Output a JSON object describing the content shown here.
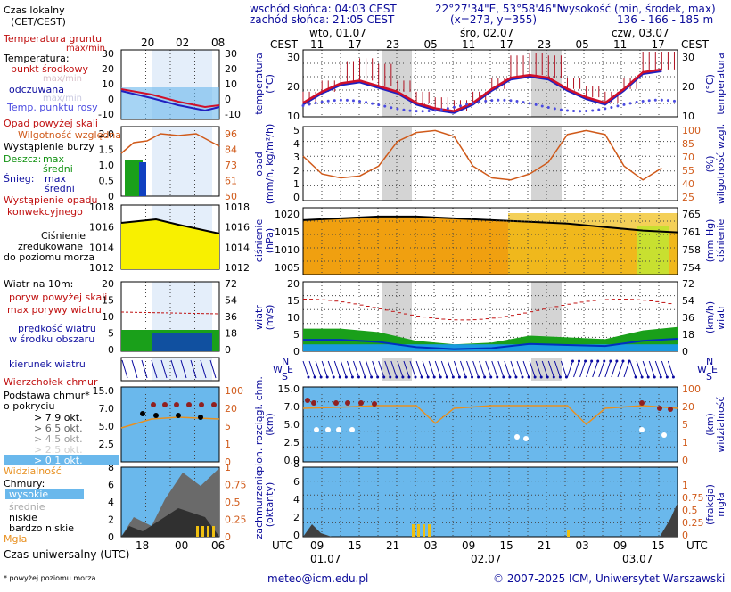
{
  "header": {
    "sunrise": "wschód słońca: 04:03 CEST",
    "sunset": "zachód słońca: 21:05 CEST",
    "coords": "22°27'34\"E, 53°58'46\"N",
    "grid": "(x=273, y=355)",
    "elevation_label": "wysokość (min, środek, max)",
    "elevation_values": "136 - 166 - 185 m"
  },
  "legend": {
    "local_time": "Czas lokalny",
    "local_time_sub": "(CET/CEST)",
    "ground_temp": "Temperatura gruntu",
    "ground_maxmin": "max/min",
    "temp_header": "Temperatura:",
    "temp_mid": "punkt środkowy",
    "temp_maxmin": "max/min",
    "felt": "odczuwana",
    "felt_maxmin": "max/min",
    "dewpoint": "Temp. punktu rosy",
    "precip_above": "Opad powyżej skali",
    "humidity": "Wilgotność względna",
    "storm": "Wystąpienie burzy",
    "rain": "Deszcz:",
    "snow": "Śnieg:",
    "max": "max",
    "mean": "średni",
    "precip_occ": "Wystąpienie opadu",
    "precip_occ2": "konwekcyjnego",
    "pressure1": "Ciśnienie",
    "pressure2": "zredukowane",
    "pressure3": "do poziomu morza",
    "wind10": "Wiatr na 10m:",
    "gust_above": "poryw powyżej skali",
    "gust_max": "max porywy wiatru",
    "wind_mean": "prędkość wiatru",
    "wind_mean2": "w środku obszaru",
    "wind_dir": "kierunek wiatru",
    "cloud_top": "Wierzchołek chmur",
    "cloud_base": "Podstawa chmur*",
    "cloud_base2": "o pokryciu",
    "okt79": "> 7.9 okt.",
    "okt65": "> 6.5 okt.",
    "okt45": "> 4.5 okt.",
    "okt25": "> 2.5 okt.",
    "okt01": "> 0.1 okt.",
    "visibility": "Widzialność",
    "clouds": "Chmury:",
    "high": "wysokie",
    "mid": "średnie",
    "low": "niskie",
    "verylow": "bardzo niskie",
    "fog": "Mgła",
    "utc_label": "Czas uniwersalny (UTC)",
    "footnote": "* powyżej poziomu morza"
  },
  "axis_labels": {
    "temp_left": "temperatura",
    "temp_left_unit": "(°C)",
    "temp_right": "temperatura",
    "temp_right_unit": "(°C)",
    "precip_left": "opad",
    "precip_left_unit": "(mm/h, kg/m²/h)",
    "humid_right": "wilgotność wzgl.",
    "humid_right_unit": "(%)",
    "press_left": "ciśnienie",
    "press_left_unit": "(hPa)",
    "press_right": "ciśnienie",
    "press_right_unit": "(mm Hg)",
    "wind_left": "wiatr",
    "wind_left_unit": "(m/s)",
    "wind_right": "wiatr",
    "wind_right_unit": "(km/h)",
    "cloud_left": "pion. rozciągł. chm.",
    "cloud_left_unit": "(km)",
    "vis_right": "widzialność",
    "vis_right_unit": "(km)",
    "cover_left": "zachmurzenie",
    "cover_left_unit": "(oktanty)",
    "fog_right": "mgła",
    "fog_right_unit": "(frakcja)",
    "compass_n": "N",
    "compass_w": "W",
    "compass_e": "E",
    "compass_s": "S"
  },
  "time_axis": {
    "cest": "CEST",
    "utc": "UTC",
    "days_top": [
      "wto, 01.07",
      "śro, 02.07",
      "czw, 03.07"
    ],
    "days_bottom": [
      "01.07",
      "02.07",
      "03.07"
    ],
    "top_hours": [
      "11",
      "17",
      "23",
      "05",
      "11",
      "17",
      "23",
      "05",
      "11",
      "17"
    ],
    "bottom_hours": [
      "09",
      "15",
      "21",
      "03",
      "09",
      "15",
      "21",
      "03",
      "09",
      "15"
    ],
    "mini_top": [
      "20",
      "02",
      "08"
    ],
    "mini_bottom": [
      "18",
      "00",
      "06"
    ]
  },
  "ticks": {
    "temp_left": [
      "30",
      "20",
      "10"
    ],
    "temp_right": [
      "30",
      "20",
      "10"
    ],
    "precip_left": [
      "5",
      "4",
      "3",
      "2",
      "1",
      "0"
    ],
    "humid_right": [
      "100",
      "85",
      "70",
      "55",
      "40",
      "25"
    ],
    "press_left": [
      "1020",
      "1015",
      "1010",
      "1005"
    ],
    "press_right": [
      "765",
      "761",
      "758",
      "754"
    ],
    "wind_left": [
      "20",
      "15",
      "10",
      "5",
      "0"
    ],
    "wind_right": [
      "72",
      "54",
      "36",
      "18",
      "0"
    ],
    "cloud_left": [
      "15.0",
      "7.0",
      "5.0",
      "2.5",
      "0.0"
    ],
    "vis_right": [
      "100",
      "20",
      "5",
      "1",
      "0"
    ],
    "cover_left": [
      "8",
      "6",
      "4",
      "2",
      "0"
    ],
    "fog_right": [
      "1",
      "0.75",
      "0.5",
      "0.25",
      "0"
    ],
    "mini_temp_left": [
      "30",
      "20",
      "10",
      "0",
      "-10"
    ],
    "mini_temp_right": [
      "30",
      "20",
      "10",
      "0",
      "-10"
    ],
    "mini_precip_left": [
      "2.0",
      "1.5",
      "1.0",
      "0.5",
      "0"
    ],
    "mini_humid_right": [
      "96",
      "84",
      "73",
      "61",
      "50"
    ],
    "mini_press_left": [
      "1018",
      "1016",
      "1014",
      "1012"
    ],
    "mini_press_right": [
      "1018",
      "1016",
      "1014",
      "1012"
    ],
    "mini_wind_left": [
      "20",
      "15",
      "10",
      "5",
      "0"
    ],
    "mini_wind_right": [
      "72",
      "54",
      "36",
      "18",
      "0"
    ],
    "mini_cloud_left": [
      "15.0",
      "7.0",
      "5.0",
      "2.5",
      "0"
    ],
    "mini_vis_right": [
      "100",
      "20",
      "5",
      "1",
      "0"
    ],
    "mini_cover_left": [
      "8",
      "6",
      "4",
      "2",
      "0"
    ],
    "mini_fog_right": [
      "1",
      "0.75",
      "0.5",
      "0.25",
      "0"
    ]
  },
  "footer": {
    "email": "meteo@icm.edu.pl",
    "copyright": "© 2007-2025 ICM, Uniwersytet Warszawski"
  },
  "colors": {
    "temp": "#d0102a",
    "felt": "#2020c0",
    "dew": "#4a4ae0",
    "humidity": "#d05a1a",
    "pressure_line": "#000000",
    "wind_band": "#1aa01a",
    "wind_speed": "#0030c0",
    "gust": "#c01010",
    "visibility": "#e89020",
    "cloud_bg": "#6ab8ec",
    "night": "#c8c8c8"
  },
  "chart_data": [
    {
      "type": "line",
      "name": "temperature",
      "x": [
        0,
        3,
        6,
        9,
        12,
        15,
        18,
        21,
        24,
        27,
        30,
        33,
        36,
        39,
        42,
        45,
        48,
        51,
        54,
        57
      ],
      "y": [
        15,
        19,
        22,
        23,
        21,
        19,
        15,
        13,
        12,
        15,
        20,
        24,
        25,
        24,
        20,
        17,
        15,
        20,
        26,
        27
      ],
      "ylim": [
        10,
        34
      ]
    },
    {
      "type": "line",
      "name": "humidity",
      "x": [
        0,
        3,
        6,
        9,
        12,
        15,
        18,
        21,
        24,
        27,
        30,
        33,
        36,
        39,
        42,
        45,
        48,
        51,
        54,
        57
      ],
      "y": [
        70,
        52,
        48,
        50,
        60,
        85,
        94,
        96,
        90,
        60,
        48,
        46,
        52,
        64,
        92,
        96,
        92,
        60,
        46,
        58
      ],
      "ylim": [
        25,
        100
      ]
    },
    {
      "type": "line",
      "name": "pressure",
      "x": [
        0,
        6,
        12,
        18,
        24,
        30,
        36,
        42,
        48,
        54,
        60
      ],
      "y": [
        1018.5,
        1019,
        1019.5,
        1019.5,
        1019,
        1018.5,
        1018,
        1017.5,
        1016.5,
        1015.5,
        1015
      ],
      "ylim": [
        1003,
        1022
      ]
    },
    {
      "type": "line",
      "name": "wind",
      "x": [
        0,
        6,
        12,
        18,
        24,
        30,
        36,
        42,
        48,
        54,
        60
      ],
      "y": [
        5.5,
        5.5,
        4.5,
        2,
        1,
        1.5,
        3.5,
        3,
        2.5,
        5,
        6
      ],
      "ylim": [
        0,
        20
      ]
    },
    {
      "type": "line",
      "name": "visibility",
      "x": [
        0,
        6,
        12,
        18,
        21,
        24,
        30,
        36,
        42,
        45,
        48,
        54,
        60
      ],
      "y": [
        40,
        42,
        45,
        45,
        12,
        40,
        45,
        45,
        45,
        10,
        40,
        45,
        40
      ],
      "ylim": [
        0,
        100
      ]
    }
  ]
}
